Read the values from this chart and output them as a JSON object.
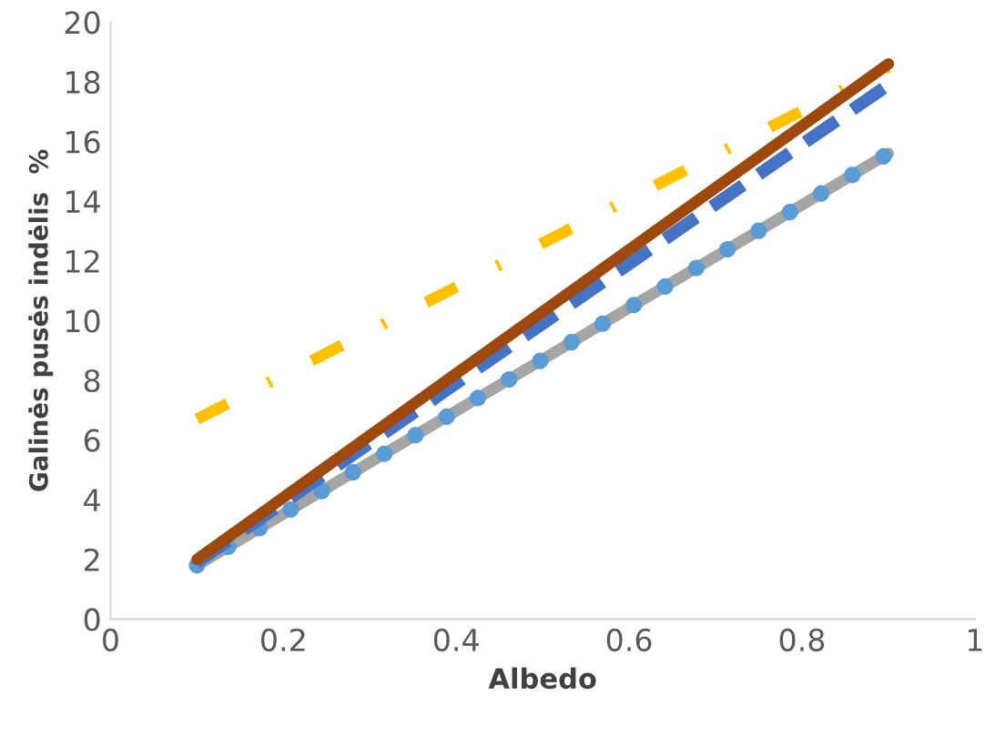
{
  "chart_data": {
    "type": "line",
    "xlabel": "Albedo",
    "ylabel": "Galinės pusės indėlis  %",
    "x": [
      0.1,
      0.9
    ],
    "series": [
      {
        "color": "#a5a5a5",
        "values": [
          1.8,
          15.6
        ],
        "line_style": "solid"
      },
      {
        "color": "#5b9bd5",
        "values": [
          1.8,
          15.6
        ],
        "line_style": "dotted"
      },
      {
        "color": "#ffc000",
        "values": [
          6.7,
          18.5
        ],
        "line_style": "dashdot"
      },
      {
        "color": "#4472c4",
        "values": [
          1.9,
          17.9
        ],
        "line_style": "dashed"
      },
      {
        "color": "#9e480e",
        "values": [
          2.0,
          18.6
        ],
        "line_style": "solid"
      }
    ],
    "xlim": [
      0,
      1
    ],
    "xticks": [
      0,
      0.2,
      0.4,
      0.6,
      0.8,
      1
    ],
    "ylim": [
      0,
      20
    ],
    "yticks": [
      0,
      2,
      4,
      6,
      8,
      10,
      12,
      14,
      16,
      18,
      20
    ],
    "grid": false,
    "legend": false,
    "marker": "none"
  }
}
